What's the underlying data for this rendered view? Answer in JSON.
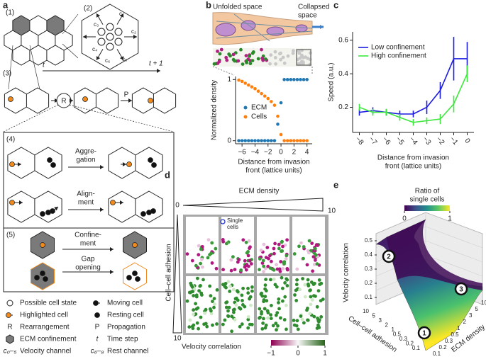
{
  "panels": [
    "a",
    "b",
    "c",
    "d",
    "e"
  ],
  "panel_a": {
    "steps": [
      "(1)",
      "(2)",
      "(3)",
      "(4)",
      "(5)"
    ],
    "channels": [
      "c₁",
      "c₂",
      "c₃",
      "c₄",
      "c₅",
      "c₆"
    ],
    "time": [
      "t",
      "t + 1"
    ],
    "ops": [
      "R",
      "P"
    ],
    "aggregation": [
      "Aggre-",
      "gation"
    ],
    "alignment": [
      "Align-",
      "ment"
    ],
    "confinement": [
      "Confine-",
      "ment"
    ],
    "gap": [
      "Gap",
      "opening"
    ],
    "legend_left": [
      {
        "text": "Possible cell state"
      },
      {
        "text": "Highlighted cell"
      },
      {
        "key": "R",
        "text": "Rearrangement"
      },
      {
        "text": "ECM confinement"
      },
      {
        "key": "c₀–₅",
        "text": "Velocity channel"
      }
    ],
    "legend_right": [
      {
        "text": "Moving cell"
      },
      {
        "text": "Resting cell"
      },
      {
        "key": "P",
        "text": "Propagation"
      },
      {
        "key": "t",
        "text": "Time step"
      },
      {
        "key": "c₆–₈",
        "text": "Rest channel"
      }
    ]
  },
  "chart_data": [
    {
      "type": "scatter",
      "annotations": {
        "unfolded": "Unfolded space",
        "collapsed": [
          "Collapsed",
          "space"
        ]
      },
      "ylabel": "Normalized density",
      "xlabel": [
        "Distance from invasion",
        "front (lattice units)"
      ],
      "x": [
        -6.5,
        -6,
        -5.5,
        -5,
        -4.5,
        -4,
        -3.5,
        -3,
        -2.5,
        -2,
        -1.5,
        -1,
        -0.5,
        0,
        0.5,
        1,
        1.5,
        2,
        2.5,
        3,
        3.5,
        4
      ],
      "series": [
        {
          "name": "ECM",
          "color": "#1f77b4",
          "values": [
            0,
            0,
            0,
            0,
            0,
            0,
            0,
            0,
            0,
            0,
            0,
            0,
            0.27,
            0.62,
            1,
            1,
            1,
            1,
            1,
            1,
            1,
            1
          ]
        },
        {
          "name": "Cells",
          "color": "#ff7f0e",
          "values": [
            0.99,
            0.97,
            0.94,
            0.91,
            0.88,
            0.85,
            0.81,
            0.77,
            0.73,
            0.69,
            0.64,
            0.58,
            0.4,
            0.1,
            0,
            0,
            0,
            0,
            0,
            0,
            0,
            0
          ]
        }
      ],
      "xlim": [
        -7,
        4.8
      ],
      "ylim": [
        -0.05,
        1.05
      ],
      "xticks": [
        {
          "value": -6,
          "label": "−6"
        },
        {
          "value": -4,
          "label": "−4"
        },
        {
          "value": -2,
          "label": "−2"
        },
        0,
        2,
        4
      ],
      "yticks": [
        0,
        1
      ]
    },
    {
      "type": "line",
      "ylabel": "Speed (a.u.)",
      "xlabel": [
        "Distance from invasion",
        "front (lattice units)"
      ],
      "x": [
        -8,
        -7,
        -6,
        -5,
        -4,
        -3,
        -2,
        -1,
        0
      ],
      "series": [
        {
          "name": "Low confinement",
          "color": "#1c1ce0",
          "values": [
            0.17,
            0.18,
            0.17,
            0.16,
            0.16,
            0.2,
            0.3,
            0.49,
            0.49
          ],
          "errors": [
            0.02,
            0.02,
            0.02,
            0.02,
            0.02,
            0.04,
            0.05,
            0.13,
            0.1
          ]
        },
        {
          "name": "High confinement",
          "color": "#3ee83e",
          "values": [
            0.2,
            0.17,
            0.17,
            0.14,
            0.11,
            0.12,
            0.13,
            0.22,
            0.4
          ],
          "errors": [
            0.02,
            0.02,
            0.02,
            0.02,
            0.02,
            0.02,
            0.03,
            0.05,
            0.05
          ]
        }
      ],
      "xlim": [
        -8.5,
        0.5
      ],
      "ylim": [
        0.05,
        0.65
      ],
      "xticks": [
        {
          "value": -8,
          "label": "−8"
        },
        {
          "value": -7,
          "label": "−7"
        },
        {
          "value": -6,
          "label": "−6"
        },
        {
          "value": -5,
          "label": "−5"
        },
        {
          "value": -4,
          "label": "−4"
        },
        {
          "value": -3,
          "label": "−3"
        },
        {
          "value": -2,
          "label": "−2"
        },
        {
          "value": -1,
          "label": "−1"
        },
        0
      ],
      "yticks": [
        0.2,
        0.4,
        0.6
      ]
    }
  ],
  "panel_d": {
    "title": "ECM density",
    "x_ends": [
      0,
      10
    ],
    "ylabel": "Cell–cell adhesion",
    "y_end": 10,
    "annotation": [
      "Single",
      "cells"
    ],
    "colorbar_label": "Velocity correlation",
    "colorbar_ticks": [
      {
        "value": -1,
        "label": "−1"
      },
      0,
      1
    ]
  },
  "panel_e": {
    "colorbar_label": [
      "Ratio of",
      "single cells"
    ],
    "colorbar_ticks": [
      0,
      1
    ],
    "zlabel": "Velocity correlation",
    "zticks": [
      0.1,
      0.2,
      0.3,
      0.4,
      0.5
    ],
    "xlabel": "Cell–cell adhesion",
    "xticks": [
      10,
      5,
      3,
      2,
      1,
      0.5,
      0.3,
      0.2,
      0.1
    ],
    "ylabel": "ECM density",
    "yticks": [
      0.1,
      0.2,
      0.3,
      0.5,
      1,
      2,
      3,
      5,
      10
    ],
    "markers": [
      1,
      2,
      3
    ]
  }
}
